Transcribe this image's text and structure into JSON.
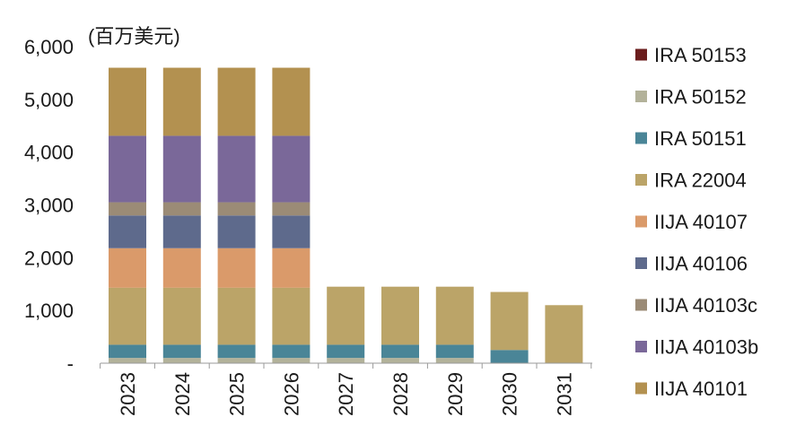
{
  "chart_data": {
    "type": "bar",
    "stacked": true,
    "unit_label": "(百万美元)",
    "ylim": [
      0,
      6000
    ],
    "y_ticks": [
      {
        "value": 0,
        "label": "-"
      },
      {
        "value": 1000,
        "label": "1,000"
      },
      {
        "value": 2000,
        "label": "2,000"
      },
      {
        "value": 3000,
        "label": "3,000"
      },
      {
        "value": 4000,
        "label": "4,000"
      },
      {
        "value": 5000,
        "label": "5,000"
      },
      {
        "value": 6000,
        "label": "6,000"
      }
    ],
    "categories": [
      "2023",
      "2024",
      "2025",
      "2026",
      "2027",
      "2028",
      "2029",
      "2030",
      "2031"
    ],
    "series": [
      {
        "name": "IRA 50152",
        "color": "#b3b29a",
        "values": [
          100,
          100,
          100,
          100,
          100,
          100,
          100,
          0,
          0
        ]
      },
      {
        "name": "IRA 50151",
        "color": "#4a8597",
        "values": [
          250,
          250,
          250,
          250,
          250,
          250,
          250,
          250,
          0
        ]
      },
      {
        "name": "IRA 22004",
        "color": "#bba468",
        "values": [
          1080,
          1080,
          1080,
          1080,
          1100,
          1100,
          1100,
          1100,
          1100
        ]
      },
      {
        "name": "IIJA 40107",
        "color": "#da9a6a",
        "values": [
          750,
          750,
          750,
          750,
          0,
          0,
          0,
          0,
          0
        ]
      },
      {
        "name": "IIJA 40106",
        "color": "#5e6a8c",
        "values": [
          620,
          620,
          620,
          620,
          0,
          0,
          0,
          0,
          0
        ]
      },
      {
        "name": "IIJA 40103c",
        "color": "#9b8b76",
        "values": [
          250,
          250,
          250,
          250,
          0,
          0,
          0,
          0,
          0
        ]
      },
      {
        "name": "IIJA 40103b",
        "color": "#7a6899",
        "values": [
          1260,
          1260,
          1260,
          1260,
          0,
          0,
          0,
          0,
          0
        ]
      },
      {
        "name": "IIJA 40101",
        "color": "#b39150",
        "values": [
          1290,
          1290,
          1290,
          1290,
          0,
          0,
          0,
          0,
          0
        ]
      },
      {
        "name": "IRA 50153",
        "color": "#6b1d1d",
        "values": [
          0,
          0,
          0,
          0,
          0,
          0,
          0,
          0,
          0
        ]
      }
    ],
    "legend": {
      "placement": "right",
      "order": [
        "IRA 50153",
        "IRA 50152",
        "IRA 50151",
        "IRA 22004",
        "IIJA 40107",
        "IIJA 40106",
        "IIJA 40103c",
        "IIJA 40103b",
        "IIJA 40101"
      ]
    },
    "grid": false
  }
}
